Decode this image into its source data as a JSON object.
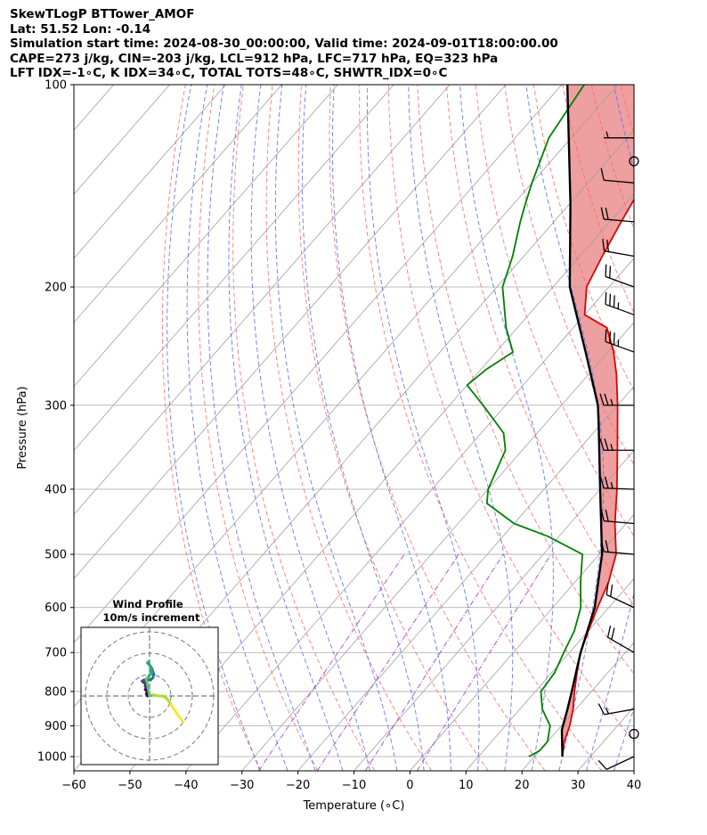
{
  "header": {
    "line1": "SkewTLogP BTTower_AMOF",
    "line2": "Lat: 51.52   Lon: -0.14",
    "line3": "Simulation start time: 2024-08-30_00:00:00, Valid time: 2024-09-01T18:00:00.00",
    "line4": "CAPE=273 j/kg, CIN=-203 j/kg, LCL=912 hPa, LFC=717 hPa, EQ=323 hPa",
    "line5": "LFT IDX=-1∘C, K IDX=34∘C, TOTAL TOTS=48∘C, SHWTR_IDX=0∘C"
  },
  "chart_data": {
    "type": "skewt",
    "xlabel": "Temperature (∘C)",
    "ylabel": "Pressure (hPa)",
    "xlim": [
      -60,
      40
    ],
    "ylim": [
      1050,
      100
    ],
    "x_ticks": [
      -60,
      -50,
      -40,
      -30,
      -20,
      -10,
      0,
      10,
      20,
      30,
      40
    ],
    "y_ticks": [
      100,
      200,
      300,
      400,
      500,
      600,
      700,
      800,
      900,
      1000
    ],
    "y_scale": "log",
    "grid": true,
    "colors": {
      "temperature": "#e00000",
      "dewpoint": "#008000",
      "parcel": "#000000",
      "cape_fill": "#4a8fc4",
      "cin_fill": "#e05050",
      "dry_adiabats": "#ff6b6b",
      "moist_adiabats": "#5a6cf0",
      "mixing_ratio": "#9b30c0",
      "isotherms": "#a0a0a0"
    },
    "temperature_profile": [
      [
        1000,
        25
      ],
      [
        950,
        23
      ],
      [
        900,
        21.5
      ],
      [
        850,
        19.5
      ],
      [
        800,
        17
      ],
      [
        750,
        14.5
      ],
      [
        700,
        12
      ],
      [
        650,
        10
      ],
      [
        600,
        8
      ],
      [
        550,
        6
      ],
      [
        500,
        3
      ],
      [
        450,
        -2
      ],
      [
        400,
        -7
      ],
      [
        350,
        -13
      ],
      [
        300,
        -20
      ],
      [
        270,
        -25
      ],
      [
        250,
        -29
      ],
      [
        230,
        -34
      ],
      [
        220,
        -40
      ],
      [
        200,
        -44
      ],
      [
        180,
        -46
      ],
      [
        160,
        -48
      ],
      [
        150,
        -49
      ],
      [
        140,
        -50
      ],
      [
        130,
        -52
      ],
      [
        120,
        -54
      ],
      [
        110,
        -56
      ],
      [
        100,
        -58
      ]
    ],
    "dewpoint_profile": [
      [
        1000,
        19
      ],
      [
        980,
        20
      ],
      [
        950,
        20
      ],
      [
        900,
        18
      ],
      [
        850,
        14
      ],
      [
        800,
        11
      ],
      [
        750,
        10.5
      ],
      [
        700,
        9
      ],
      [
        650,
        7.5
      ],
      [
        600,
        5
      ],
      [
        550,
        1
      ],
      [
        500,
        -3
      ],
      [
        470,
        -12
      ],
      [
        450,
        -20
      ],
      [
        420,
        -28
      ],
      [
        400,
        -30
      ],
      [
        350,
        -33
      ],
      [
        330,
        -36
      ],
      [
        300,
        -44
      ],
      [
        280,
        -50
      ],
      [
        265,
        -49
      ],
      [
        250,
        -47
      ],
      [
        230,
        -52
      ],
      [
        200,
        -59
      ],
      [
        180,
        -62
      ],
      [
        160,
        -66
      ],
      [
        150,
        -68
      ],
      [
        140,
        -70
      ],
      [
        120,
        -74
      ],
      [
        100,
        -76
      ]
    ],
    "parcel_profile": [
      [
        1000,
        25
      ],
      [
        912,
        20.7
      ],
      [
        850,
        18.5
      ],
      [
        800,
        16.5
      ],
      [
        717,
        12.8
      ],
      [
        700,
        12
      ],
      [
        600,
        7.5
      ],
      [
        500,
        0.5
      ],
      [
        400,
        -10
      ],
      [
        323,
        -20
      ],
      [
        300,
        -23.5
      ],
      [
        250,
        -34
      ],
      [
        200,
        -47
      ],
      [
        150,
        -60
      ],
      [
        100,
        -79
      ]
    ],
    "wind_barbs": [
      {
        "p": 1000,
        "speed_kt": 10,
        "dir_deg": 245
      },
      {
        "p": 925,
        "speed_kt": 0,
        "dir_deg": 0
      },
      {
        "p": 850,
        "speed_kt": 15,
        "dir_deg": 260
      },
      {
        "p": 700,
        "speed_kt": 20,
        "dir_deg": 300
      },
      {
        "p": 600,
        "speed_kt": 20,
        "dir_deg": 295
      },
      {
        "p": 500,
        "speed_kt": 20,
        "dir_deg": 275
      },
      {
        "p": 450,
        "speed_kt": 20,
        "dir_deg": 275
      },
      {
        "p": 400,
        "speed_kt": 25,
        "dir_deg": 272
      },
      {
        "p": 350,
        "speed_kt": 25,
        "dir_deg": 270
      },
      {
        "p": 300,
        "speed_kt": 25,
        "dir_deg": 270
      },
      {
        "p": 250,
        "speed_kt": 35,
        "dir_deg": 290
      },
      {
        "p": 220,
        "speed_kt": 35,
        "dir_deg": 290
      },
      {
        "p": 200,
        "speed_kt": 20,
        "dir_deg": 290
      },
      {
        "p": 180,
        "speed_kt": 20,
        "dir_deg": 280
      },
      {
        "p": 160,
        "speed_kt": 20,
        "dir_deg": 275
      },
      {
        "p": 140,
        "speed_kt": 10,
        "dir_deg": 275
      },
      {
        "p": 130,
        "speed_kt": 0,
        "dir_deg": 0
      },
      {
        "p": 120,
        "speed_kt": 5,
        "dir_deg": 270
      }
    ],
    "hodograph": {
      "title": "Wind Profile",
      "subtitle": "10m/s increment",
      "rings_ms": [
        10,
        20,
        30
      ],
      "points_uv": [
        [
          -1,
          0
        ],
        [
          -1.5,
          1
        ],
        [
          -1,
          2
        ],
        [
          -2,
          3
        ],
        [
          -1.5,
          4
        ],
        [
          -2,
          4.5
        ],
        [
          -2,
          6
        ],
        [
          -3,
          6.5
        ],
        [
          -3.5,
          7
        ],
        [
          -2.5,
          7.5
        ],
        [
          -1,
          7.5
        ],
        [
          0.5,
          7.5
        ],
        [
          1.5,
          8.5
        ],
        [
          2,
          10
        ],
        [
          1.5,
          11.5
        ],
        [
          1,
          13
        ],
        [
          0,
          14.5
        ],
        [
          -0.5,
          15
        ],
        [
          -1,
          15.5
        ],
        [
          -0.5,
          16
        ],
        [
          0.5,
          13
        ],
        [
          1,
          11
        ],
        [
          -1,
          8.5
        ],
        [
          -1.5,
          8
        ],
        [
          0,
          0
        ],
        [
          2,
          0.5
        ],
        [
          4,
          0
        ],
        [
          6,
          0
        ],
        [
          8,
          -1
        ],
        [
          10,
          -4
        ],
        [
          12,
          -7
        ],
        [
          14,
          -10
        ],
        [
          15.5,
          -12
        ]
      ]
    }
  }
}
